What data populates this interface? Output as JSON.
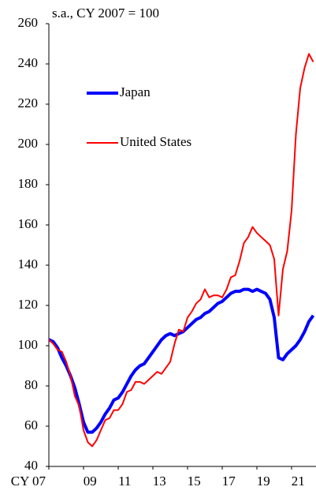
{
  "chart_data": {
    "type": "line",
    "subtitle": "s.a., CY 2007 = 100",
    "categories": [
      "CY 07",
      null,
      null,
      null,
      null,
      null,
      null,
      null,
      "09",
      null,
      null,
      null,
      null,
      null,
      null,
      null,
      "11",
      null,
      null,
      null,
      null,
      null,
      null,
      null,
      "13",
      null,
      null,
      null,
      null,
      null,
      null,
      null,
      "15",
      null,
      null,
      null,
      null,
      null,
      null,
      null,
      "17",
      null,
      null,
      null,
      null,
      null,
      null,
      null,
      "19",
      null,
      null,
      null,
      null,
      null,
      null,
      null,
      "21",
      null,
      null,
      null,
      null,
      null
    ],
    "series": [
      {
        "name": "Japan",
        "color": "#0000ff",
        "values": [
          103,
          102,
          99,
          94,
          90,
          85,
          79,
          71,
          62,
          57,
          57,
          59,
          62,
          66,
          69,
          73,
          74,
          77,
          81,
          85,
          88,
          90,
          91,
          94,
          97,
          100,
          103,
          105,
          106,
          105,
          106,
          107,
          109,
          111,
          113,
          114,
          116,
          117,
          119,
          121,
          122,
          124,
          126,
          127,
          127,
          128,
          128,
          127,
          128,
          127,
          126,
          123,
          114,
          94,
          93,
          96,
          98,
          100,
          103,
          107,
          112,
          115
        ]
      },
      {
        "name": "United States",
        "color": "#ff0000",
        "values": [
          103,
          101,
          98,
          97,
          92,
          85,
          75,
          70,
          58,
          52,
          50,
          53,
          58,
          63,
          64,
          68,
          68,
          71,
          77,
          78,
          82,
          82,
          81,
          83,
          85,
          87,
          86,
          89,
          92,
          101,
          108,
          107,
          114,
          117,
          121,
          123,
          128,
          124,
          125,
          125,
          124,
          128,
          134,
          135,
          142,
          151,
          154,
          159,
          156,
          154,
          152,
          150,
          143,
          115,
          138,
          147,
          167,
          205,
          228,
          238,
          245,
          241
        ]
      }
    ],
    "ylim": [
      40,
      260
    ],
    "yticks": [
      40,
      60,
      80,
      100,
      120,
      140,
      160,
      180,
      200,
      220,
      240,
      260
    ]
  }
}
